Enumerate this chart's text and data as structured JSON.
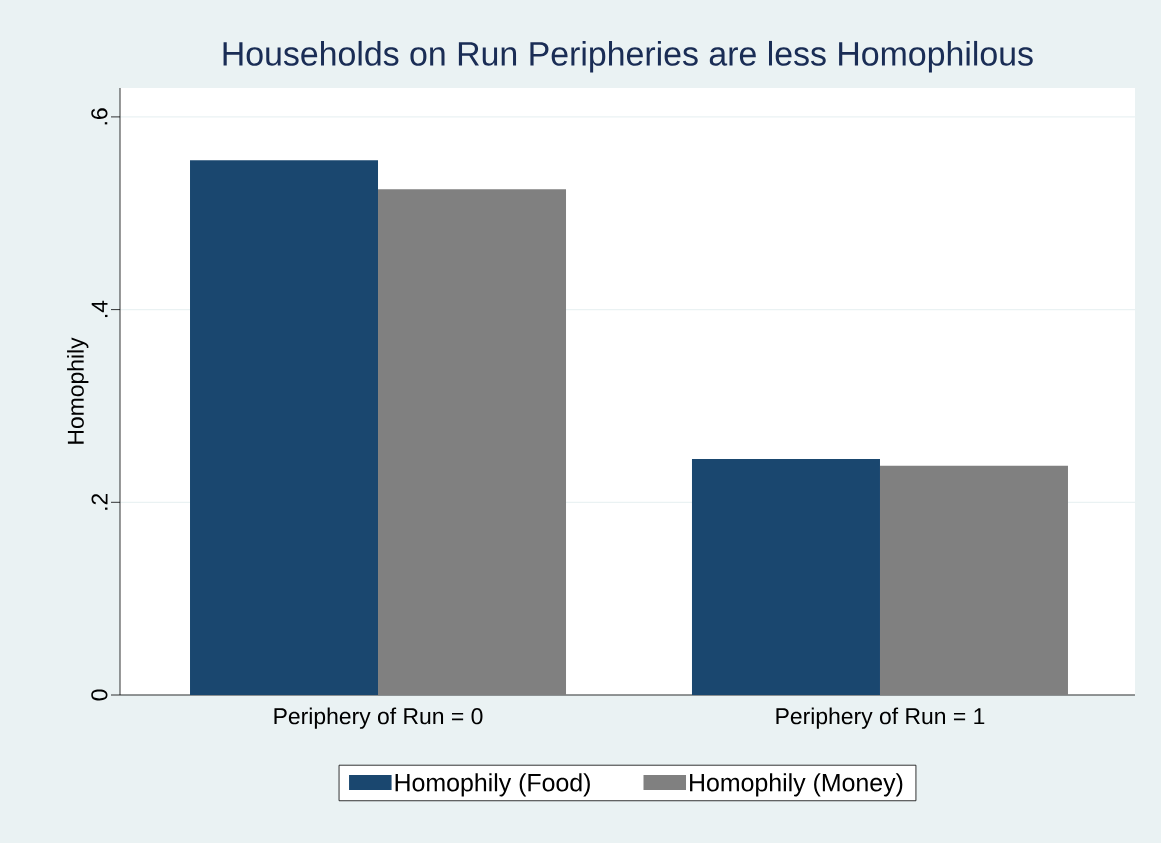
{
  "chart_data": {
    "type": "bar",
    "title": "Households on Run Peripheries are less Homophilous",
    "ylabel": "Homophily",
    "categories": [
      "Periphery of Run = 0",
      "Periphery of Run = 1"
    ],
    "series": [
      {
        "name": "Homophily  (Food)",
        "color": "#1a476f",
        "values": [
          0.555,
          0.245
        ]
      },
      {
        "name": "Homophily (Money)",
        "color": "#808080",
        "values": [
          0.525,
          0.238
        ]
      }
    ],
    "ylim": [
      0,
      0.63
    ],
    "yticks": [
      {
        "value": 0,
        "label": "0"
      },
      {
        "value": 0.2,
        "label": ".2"
      },
      {
        "value": 0.4,
        "label": ".4"
      },
      {
        "value": 0.6,
        "label": ".6"
      }
    ],
    "grid": "y",
    "legend": "bottom"
  }
}
